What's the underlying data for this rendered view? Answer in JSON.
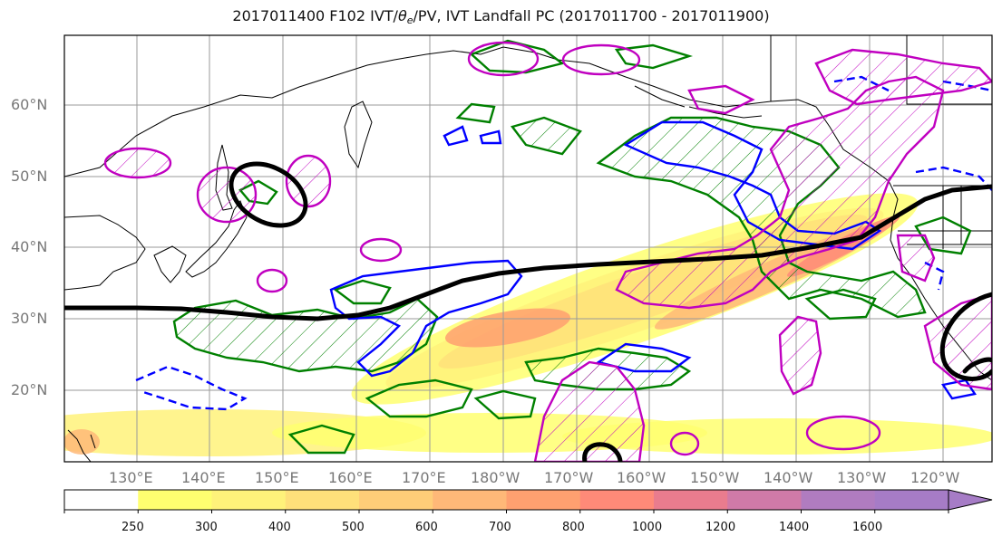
{
  "title": {
    "prefix": "2017011400 F102 IVT/",
    "theta": "θ",
    "theta_sub": "e",
    "suffix": "/PV, IVT Landfall PC (2017011700 - 2017011900)"
  },
  "latitude_labels": [
    "60°N",
    "50°N",
    "40°N",
    "30°N",
    "20°N"
  ],
  "longitude_labels": [
    "130°E",
    "140°E",
    "150°E",
    "160°E",
    "170°E",
    "180°W",
    "170°W",
    "160°W",
    "150°W",
    "140°W",
    "130°W",
    "120°W"
  ],
  "colorbar": {
    "levels": [
      "250",
      "300",
      "400",
      "500",
      "600",
      "700",
      "800",
      "1000",
      "1200",
      "1400",
      "1600"
    ],
    "colors": [
      "#ffffff",
      "#ffff70",
      "#fff27a",
      "#ffe07a",
      "#ffcd78",
      "#ffb878",
      "#ffa070",
      "#ff8a78",
      "#e97c8e",
      "#d07aa8",
      "#b07cc0",
      "#a67cc6"
    ],
    "extend": "max"
  },
  "contour_colors": {
    "pv": "#008000",
    "theta_e": "#0000ff",
    "landfall_pc": "#c000c0",
    "ivt_axis": "#000000"
  }
}
